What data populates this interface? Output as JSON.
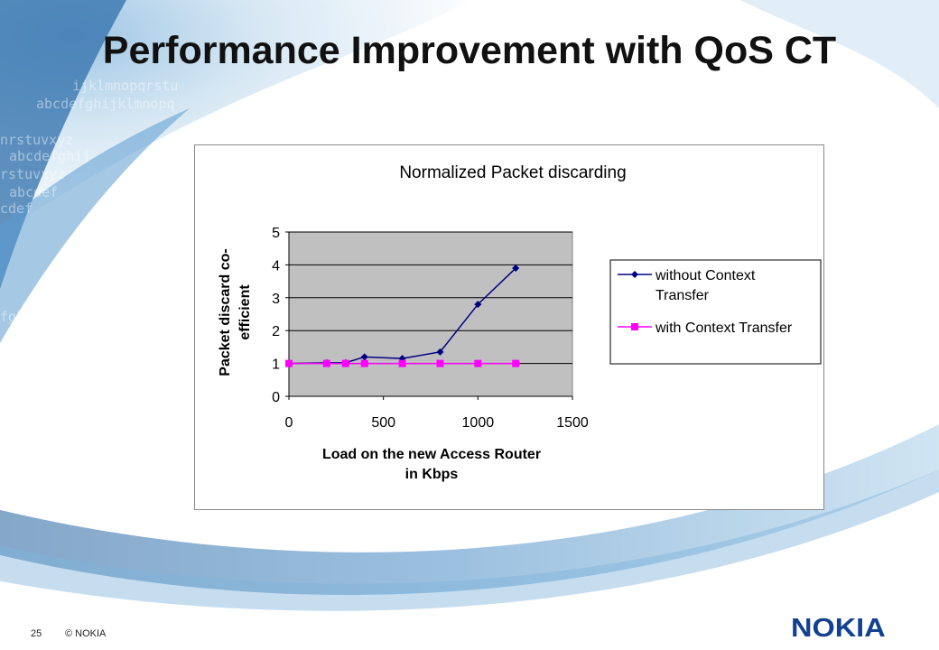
{
  "slide": {
    "title": "Performance Improvement with QoS CT",
    "page_number": "25",
    "copyright": "© NOKIA",
    "logo_text": "NOKIA"
  },
  "colors": {
    "brand_blue": "#124191",
    "plot_area": "#c0c0c0",
    "series_without": "#000080",
    "series_with": "#ff00ff"
  },
  "chart_data": {
    "type": "line",
    "title": "Normalized Packet discarding",
    "xlabel": [
      "Load on the new Access Router",
      "in Kbps"
    ],
    "ylabel": [
      "Packet discard co-",
      "efficient"
    ],
    "xlim": [
      0,
      1500
    ],
    "ylim": [
      0,
      5
    ],
    "xticks": [
      0,
      500,
      1000,
      1500
    ],
    "yticks": [
      0,
      1,
      2,
      3,
      4,
      5
    ],
    "grid": "horizontal",
    "legend_position": "right",
    "series": [
      {
        "name": "without Context Transfer",
        "legend_lines": [
          "without Context",
          "Transfer"
        ],
        "marker": "diamond",
        "color": "#000080",
        "points": [
          [
            0,
            1.0
          ],
          [
            200,
            1.02
          ],
          [
            300,
            1.02
          ],
          [
            400,
            1.2
          ],
          [
            600,
            1.15
          ],
          [
            800,
            1.35
          ],
          [
            1000,
            2.8
          ],
          [
            1200,
            3.9
          ]
        ]
      },
      {
        "name": "with Context Transfer",
        "legend_lines": [
          "with Context Transfer"
        ],
        "marker": "square",
        "color": "#ff00ff",
        "points": [
          [
            0,
            1.0
          ],
          [
            200,
            1.0
          ],
          [
            300,
            1.0
          ],
          [
            400,
            1.0
          ],
          [
            600,
            1.0
          ],
          [
            800,
            1.0
          ],
          [
            1000,
            1.0
          ],
          [
            1200,
            1.0
          ]
        ]
      }
    ]
  }
}
